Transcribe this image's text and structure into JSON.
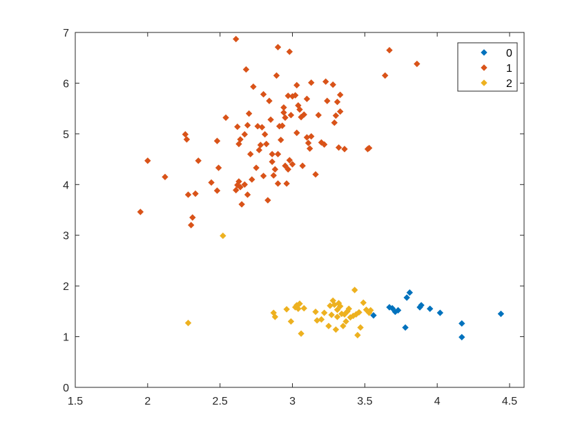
{
  "chart_data": {
    "type": "scatter",
    "xlim": [
      1.5,
      4.6
    ],
    "ylim": [
      0,
      7
    ],
    "xticks": [
      "1.5",
      "2",
      "2.5",
      "3",
      "3.5",
      "4",
      "4.5"
    ],
    "yticks": [
      "0",
      "1",
      "2",
      "3",
      "4",
      "5",
      "6",
      "7"
    ],
    "grid": false,
    "legend_position": "top-right",
    "series": [
      {
        "name": "0",
        "color": "#0072BD",
        "points": [
          [
            3.56,
            1.42
          ],
          [
            3.67,
            1.58
          ],
          [
            3.69,
            1.56
          ],
          [
            3.71,
            1.49
          ],
          [
            3.73,
            1.52
          ],
          [
            3.78,
            1.18
          ],
          [
            3.79,
            1.77
          ],
          [
            3.81,
            1.87
          ],
          [
            3.88,
            1.58
          ],
          [
            3.89,
            1.62
          ],
          [
            3.95,
            1.55
          ],
          [
            4.02,
            1.47
          ],
          [
            4.17,
            1.26
          ],
          [
            4.17,
            0.99
          ],
          [
            4.44,
            1.45
          ]
        ]
      },
      {
        "name": "1",
        "color": "#D95319",
        "points": [
          [
            1.95,
            3.46
          ],
          [
            2.0,
            4.47
          ],
          [
            2.12,
            4.15
          ],
          [
            2.26,
            4.99
          ],
          [
            2.27,
            4.89
          ],
          [
            2.28,
            3.8
          ],
          [
            2.3,
            3.2
          ],
          [
            2.31,
            3.35
          ],
          [
            2.33,
            3.82
          ],
          [
            2.35,
            4.47
          ],
          [
            2.44,
            4.04
          ],
          [
            2.48,
            4.86
          ],
          [
            2.48,
            3.88
          ],
          [
            2.49,
            4.33
          ],
          [
            2.54,
            5.32
          ],
          [
            2.61,
            6.87
          ],
          [
            2.61,
            3.89
          ],
          [
            2.62,
            5.14
          ],
          [
            2.62,
            3.99
          ],
          [
            2.63,
            4.8
          ],
          [
            2.63,
            4.06
          ],
          [
            2.64,
            4.89
          ],
          [
            2.64,
            3.95
          ],
          [
            2.65,
            3.61
          ],
          [
            2.67,
            4.99
          ],
          [
            2.67,
            4.0
          ],
          [
            2.68,
            6.27
          ],
          [
            2.69,
            5.17
          ],
          [
            2.69,
            3.8
          ],
          [
            2.7,
            5.4
          ],
          [
            2.71,
            4.6
          ],
          [
            2.72,
            4.1
          ],
          [
            2.73,
            5.93
          ],
          [
            2.75,
            4.33
          ],
          [
            2.76,
            5.15
          ],
          [
            2.77,
            4.68
          ],
          [
            2.78,
            4.78
          ],
          [
            2.79,
            5.13
          ],
          [
            2.8,
            5.78
          ],
          [
            2.8,
            4.17
          ],
          [
            2.81,
            4.99
          ],
          [
            2.82,
            4.8
          ],
          [
            2.83,
            3.69
          ],
          [
            2.84,
            5.65
          ],
          [
            2.85,
            5.28
          ],
          [
            2.86,
            4.6
          ],
          [
            2.86,
            4.45
          ],
          [
            2.87,
            4.18
          ],
          [
            2.88,
            4.3
          ],
          [
            2.89,
            6.15
          ],
          [
            2.9,
            6.71
          ],
          [
            2.9,
            4.6
          ],
          [
            2.9,
            4.02
          ],
          [
            2.91,
            5.15
          ],
          [
            2.92,
            4.88
          ],
          [
            2.93,
            5.16
          ],
          [
            2.94,
            5.52
          ],
          [
            2.94,
            5.42
          ],
          [
            2.95,
            5.32
          ],
          [
            2.95,
            4.37
          ],
          [
            2.96,
            4.02
          ],
          [
            2.97,
            5.75
          ],
          [
            2.97,
            4.3
          ],
          [
            2.98,
            6.62
          ],
          [
            2.98,
            4.48
          ],
          [
            2.99,
            5.37
          ],
          [
            3.0,
            5.74
          ],
          [
            3.0,
            4.4
          ],
          [
            3.02,
            5.76
          ],
          [
            3.03,
            5.96
          ],
          [
            3.03,
            5.02
          ],
          [
            3.04,
            5.56
          ],
          [
            3.05,
            5.48
          ],
          [
            3.06,
            5.33
          ],
          [
            3.07,
            4.37
          ],
          [
            3.08,
            5.38
          ],
          [
            3.1,
            5.69
          ],
          [
            3.1,
            4.93
          ],
          [
            3.11,
            4.82
          ],
          [
            3.12,
            4.71
          ],
          [
            3.13,
            6.01
          ],
          [
            3.13,
            4.95
          ],
          [
            3.16,
            4.2
          ],
          [
            3.18,
            5.37
          ],
          [
            3.2,
            4.83
          ],
          [
            3.22,
            4.79
          ],
          [
            3.23,
            6.03
          ],
          [
            3.24,
            5.65
          ],
          [
            3.28,
            5.97
          ],
          [
            3.29,
            5.22
          ],
          [
            3.3,
            5.36
          ],
          [
            3.31,
            5.63
          ],
          [
            3.32,
            4.73
          ],
          [
            3.33,
            5.77
          ],
          [
            3.33,
            5.44
          ],
          [
            3.36,
            4.7
          ],
          [
            3.52,
            4.7
          ],
          [
            3.53,
            4.72
          ],
          [
            3.64,
            6.15
          ],
          [
            3.67,
            6.65
          ],
          [
            3.86,
            6.38
          ]
        ]
      },
      {
        "name": "2",
        "color": "#EDB120",
        "points": [
          [
            2.28,
            1.27
          ],
          [
            2.52,
            2.99
          ],
          [
            2.87,
            1.47
          ],
          [
            2.88,
            1.39
          ],
          [
            2.96,
            1.54
          ],
          [
            2.99,
            1.3
          ],
          [
            3.02,
            1.58
          ],
          [
            3.03,
            1.62
          ],
          [
            3.04,
            1.55
          ],
          [
            3.05,
            1.65
          ],
          [
            3.06,
            1.06
          ],
          [
            3.08,
            1.56
          ],
          [
            3.16,
            1.49
          ],
          [
            3.17,
            1.32
          ],
          [
            3.2,
            1.34
          ],
          [
            3.22,
            1.47
          ],
          [
            3.25,
            1.21
          ],
          [
            3.26,
            1.61
          ],
          [
            3.27,
            1.43
          ],
          [
            3.28,
            1.71
          ],
          [
            3.29,
            1.63
          ],
          [
            3.3,
            1.14
          ],
          [
            3.31,
            1.53
          ],
          [
            3.31,
            1.39
          ],
          [
            3.32,
            1.66
          ],
          [
            3.33,
            1.6
          ],
          [
            3.34,
            1.45
          ],
          [
            3.35,
            1.21
          ],
          [
            3.36,
            1.44
          ],
          [
            3.37,
            1.3
          ],
          [
            3.38,
            1.5
          ],
          [
            3.39,
            1.55
          ],
          [
            3.4,
            1.38
          ],
          [
            3.42,
            1.41
          ],
          [
            3.43,
            1.92
          ],
          [
            3.44,
            1.44
          ],
          [
            3.45,
            1.03
          ],
          [
            3.46,
            1.48
          ],
          [
            3.47,
            1.18
          ],
          [
            3.49,
            1.67
          ],
          [
            3.51,
            1.53
          ],
          [
            3.53,
            1.47
          ],
          [
            3.54,
            1.52
          ]
        ]
      }
    ]
  }
}
